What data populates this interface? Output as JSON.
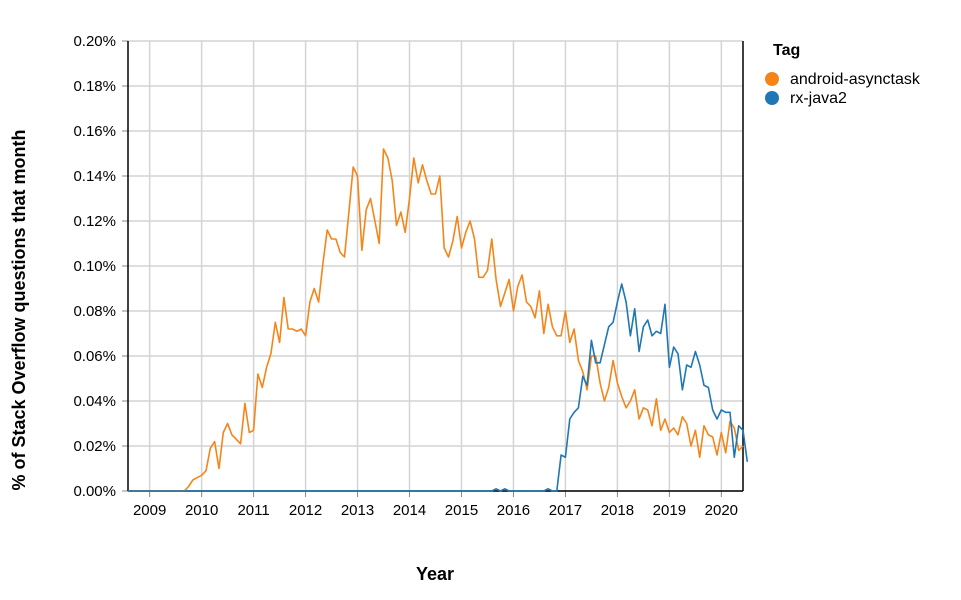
{
  "chart_data": {
    "type": "line",
    "xlabel": "Year",
    "ylabel": "% of Stack Overflow questions that month",
    "x_tick_labels": [
      "2009",
      "2010",
      "2011",
      "2012",
      "2013",
      "2014",
      "2015",
      "2016",
      "2017",
      "2018",
      "2019",
      "2020"
    ],
    "y_tick_labels": [
      "0.00%",
      "0.02%",
      "0.04%",
      "0.06%",
      "0.08%",
      "0.10%",
      "0.12%",
      "0.14%",
      "0.16%",
      "0.18%",
      "0.20%"
    ],
    "xlim": [
      "2008-08",
      "2020-06"
    ],
    "ylim": [
      0,
      0.2
    ],
    "grid": true,
    "legend": {
      "title": "Tag",
      "position": "right"
    },
    "series": [
      {
        "name": "android-asynctask",
        "color": "#f58518",
        "points": [
          [
            "2008-08",
            0
          ],
          [
            "2009-01",
            0
          ],
          [
            "2009-06",
            0
          ],
          [
            "2009-09",
            0
          ],
          [
            "2009-10",
            0.002
          ],
          [
            "2009-11",
            0.005
          ],
          [
            "2010-01",
            0.007
          ],
          [
            "2010-02",
            0.009
          ],
          [
            "2010-03",
            0.019
          ],
          [
            "2010-04",
            0.022
          ],
          [
            "2010-05",
            0.01
          ],
          [
            "2010-06",
            0.026
          ],
          [
            "2010-07",
            0.03
          ],
          [
            "2010-08",
            0.025
          ],
          [
            "2010-09",
            0.023
          ],
          [
            "2010-10",
            0.021
          ],
          [
            "2010-11",
            0.039
          ],
          [
            "2010-12",
            0.026
          ],
          [
            "2011-01",
            0.027
          ],
          [
            "2011-02",
            0.052
          ],
          [
            "2011-03",
            0.046
          ],
          [
            "2011-04",
            0.055
          ],
          [
            "2011-05",
            0.061
          ],
          [
            "2011-06",
            0.075
          ],
          [
            "2011-07",
            0.066
          ],
          [
            "2011-08",
            0.086
          ],
          [
            "2011-09",
            0.072
          ],
          [
            "2011-10",
            0.072
          ],
          [
            "2011-11",
            0.071
          ],
          [
            "2011-12",
            0.072
          ],
          [
            "2012-01",
            0.069
          ],
          [
            "2012-02",
            0.084
          ],
          [
            "2012-03",
            0.09
          ],
          [
            "2012-04",
            0.084
          ],
          [
            "2012-05",
            0.101
          ],
          [
            "2012-06",
            0.116
          ],
          [
            "2012-07",
            0.112
          ],
          [
            "2012-08",
            0.112
          ],
          [
            "2012-09",
            0.106
          ],
          [
            "2012-10",
            0.104
          ],
          [
            "2012-11",
            0.124
          ],
          [
            "2012-12",
            0.144
          ],
          [
            "2013-01",
            0.14
          ],
          [
            "2013-02",
            0.107
          ],
          [
            "2013-03",
            0.125
          ],
          [
            "2013-04",
            0.13
          ],
          [
            "2013-05",
            0.12
          ],
          [
            "2013-06",
            0.11
          ],
          [
            "2013-07",
            0.152
          ],
          [
            "2013-08",
            0.148
          ],
          [
            "2013-09",
            0.138
          ],
          [
            "2013-10",
            0.118
          ],
          [
            "2013-11",
            0.124
          ],
          [
            "2013-12",
            0.115
          ],
          [
            "2014-01",
            0.13
          ],
          [
            "2014-02",
            0.148
          ],
          [
            "2014-03",
            0.137
          ],
          [
            "2014-04",
            0.145
          ],
          [
            "2014-05",
            0.138
          ],
          [
            "2014-06",
            0.132
          ],
          [
            "2014-07",
            0.132
          ],
          [
            "2014-08",
            0.14
          ],
          [
            "2014-09",
            0.108
          ],
          [
            "2014-10",
            0.104
          ],
          [
            "2014-11",
            0.111
          ],
          [
            "2014-12",
            0.122
          ],
          [
            "2015-01",
            0.108
          ],
          [
            "2015-02",
            0.115
          ],
          [
            "2015-03",
            0.12
          ],
          [
            "2015-04",
            0.112
          ],
          [
            "2015-05",
            0.095
          ],
          [
            "2015-06",
            0.095
          ],
          [
            "2015-07",
            0.098
          ],
          [
            "2015-08",
            0.112
          ],
          [
            "2015-09",
            0.094
          ],
          [
            "2015-10",
            0.082
          ],
          [
            "2015-11",
            0.088
          ],
          [
            "2015-12",
            0.094
          ],
          [
            "2016-01",
            0.08
          ],
          [
            "2016-02",
            0.091
          ],
          [
            "2016-03",
            0.096
          ],
          [
            "2016-04",
            0.084
          ],
          [
            "2016-05",
            0.082
          ],
          [
            "2016-06",
            0.077
          ],
          [
            "2016-07",
            0.089
          ],
          [
            "2016-08",
            0.07
          ],
          [
            "2016-09",
            0.083
          ],
          [
            "2016-10",
            0.073
          ],
          [
            "2016-11",
            0.069
          ],
          [
            "2016-12",
            0.069
          ],
          [
            "2017-01",
            0.08
          ],
          [
            "2017-02",
            0.066
          ],
          [
            "2017-03",
            0.072
          ],
          [
            "2017-04",
            0.058
          ],
          [
            "2017-05",
            0.053
          ],
          [
            "2017-06",
            0.045
          ],
          [
            "2017-07",
            0.06
          ],
          [
            "2017-08",
            0.06
          ],
          [
            "2017-09",
            0.048
          ],
          [
            "2017-10",
            0.04
          ],
          [
            "2017-11",
            0.046
          ],
          [
            "2017-12",
            0.058
          ],
          [
            "2018-01",
            0.048
          ],
          [
            "2018-02",
            0.042
          ],
          [
            "2018-03",
            0.037
          ],
          [
            "2018-04",
            0.04
          ],
          [
            "2018-05",
            0.045
          ],
          [
            "2018-06",
            0.032
          ],
          [
            "2018-07",
            0.037
          ],
          [
            "2018-08",
            0.036
          ],
          [
            "2018-09",
            0.029
          ],
          [
            "2018-10",
            0.041
          ],
          [
            "2018-11",
            0.027
          ],
          [
            "2018-12",
            0.032
          ],
          [
            "2019-01",
            0.026
          ],
          [
            "2019-02",
            0.028
          ],
          [
            "2019-03",
            0.025
          ],
          [
            "2019-04",
            0.033
          ],
          [
            "2019-05",
            0.03
          ],
          [
            "2019-06",
            0.02
          ],
          [
            "2019-07",
            0.027
          ],
          [
            "2019-08",
            0.015
          ],
          [
            "2019-09",
            0.029
          ],
          [
            "2019-10",
            0.025
          ],
          [
            "2019-11",
            0.024
          ],
          [
            "2019-12",
            0.016
          ],
          [
            "2020-01",
            0.026
          ],
          [
            "2020-02",
            0.017
          ],
          [
            "2020-03",
            0.031
          ],
          [
            "2020-04",
            0.028
          ],
          [
            "2020-05",
            0.018
          ],
          [
            "2020-06",
            0.02
          ]
        ]
      },
      {
        "name": "rx-java2",
        "color": "#1f77b4",
        "points": [
          [
            "2008-08",
            0
          ],
          [
            "2015-08",
            0
          ],
          [
            "2015-09",
            0.001
          ],
          [
            "2015-10",
            0
          ],
          [
            "2015-11",
            0.001
          ],
          [
            "2015-12",
            0
          ],
          [
            "2016-08",
            0
          ],
          [
            "2016-09",
            0.001
          ],
          [
            "2016-10",
            0
          ],
          [
            "2016-11",
            0
          ],
          [
            "2016-12",
            0.016
          ],
          [
            "2017-01",
            0.015
          ],
          [
            "2017-02",
            0.032
          ],
          [
            "2017-03",
            0.035
          ],
          [
            "2017-04",
            0.037
          ],
          [
            "2017-05",
            0.051
          ],
          [
            "2017-06",
            0.047
          ],
          [
            "2017-07",
            0.067
          ],
          [
            "2017-08",
            0.057
          ],
          [
            "2017-09",
            0.057
          ],
          [
            "2017-10",
            0.065
          ],
          [
            "2017-11",
            0.073
          ],
          [
            "2017-12",
            0.075
          ],
          [
            "2018-01",
            0.084
          ],
          [
            "2018-02",
            0.092
          ],
          [
            "2018-03",
            0.084
          ],
          [
            "2018-04",
            0.069
          ],
          [
            "2018-05",
            0.081
          ],
          [
            "2018-06",
            0.062
          ],
          [
            "2018-07",
            0.073
          ],
          [
            "2018-08",
            0.076
          ],
          [
            "2018-09",
            0.069
          ],
          [
            "2018-10",
            0.071
          ],
          [
            "2018-11",
            0.07
          ],
          [
            "2018-12",
            0.083
          ],
          [
            "2019-01",
            0.055
          ],
          [
            "2019-02",
            0.064
          ],
          [
            "2019-03",
            0.061
          ],
          [
            "2019-04",
            0.045
          ],
          [
            "2019-05",
            0.056
          ],
          [
            "2019-06",
            0.055
          ],
          [
            "2019-07",
            0.062
          ],
          [
            "2019-08",
            0.056
          ],
          [
            "2019-09",
            0.047
          ],
          [
            "2019-10",
            0.046
          ],
          [
            "2019-11",
            0.036
          ],
          [
            "2019-12",
            0.032
          ],
          [
            "2020-01",
            0.036
          ],
          [
            "2020-02",
            0.035
          ],
          [
            "2020-03",
            0.035
          ],
          [
            "2020-04",
            0.015
          ],
          [
            "2020-05",
            0.029
          ],
          [
            "2020-06",
            0.027
          ],
          [
            "2020-07",
            0.013
          ]
        ]
      }
    ]
  }
}
